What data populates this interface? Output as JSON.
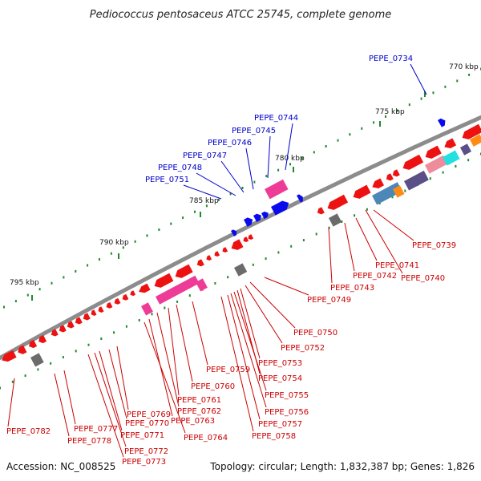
{
  "title": "Pediococcus pentosaceus ATCC 25745, complete genome",
  "footer": {
    "accession": "Accession: NC_008525",
    "summary": "Topology: circular; Length: 1,832,387 bp; Genes: 1,826"
  },
  "colors": {
    "backbone": "#8c8c8c",
    "tick": "#1e8a2e",
    "forward_label": "#0000cc",
    "reverse_label": "#cc0000",
    "cds_reverse": "#ee1111",
    "cds_forward": "#0a0aee",
    "rna": "#6b6b6b",
    "pink": "#ee3c96",
    "light_pink": "#ee8c9c",
    "steel_blue": "#4d87b8",
    "slate": "#5a4f86",
    "cyan": "#22e0e0",
    "orange": "#ff8a14"
  },
  "scale": {
    "tick_labels": [
      "770 kbp",
      "775 kbp",
      "780 kbp",
      "785 kbp",
      "790 kbp",
      "795 kbp"
    ]
  },
  "forward_genes": [
    {
      "label": "PEPE_0734"
    },
    {
      "label": "PEPE_0744"
    },
    {
      "label": "PEPE_0745"
    },
    {
      "label": "PEPE_0746"
    },
    {
      "label": "PEPE_0747"
    },
    {
      "label": "PEPE_0748"
    },
    {
      "label": "PEPE_0751"
    }
  ],
  "reverse_genes": [
    {
      "label": "PEPE_0739"
    },
    {
      "label": "PEPE_0741"
    },
    {
      "label": "PEPE_0742"
    },
    {
      "label": "PEPE_0740"
    },
    {
      "label": "PEPE_0743"
    },
    {
      "label": "PEPE_0749"
    },
    {
      "label": "PEPE_0750"
    },
    {
      "label": "PEPE_0752"
    },
    {
      "label": "PEPE_0753"
    },
    {
      "label": "PEPE_0754"
    },
    {
      "label": "PEPE_0755"
    },
    {
      "label": "PEPE_0756"
    },
    {
      "label": "PEPE_0757"
    },
    {
      "label": "PEPE_0758"
    },
    {
      "label": "PEPE_0759"
    },
    {
      "label": "PEPE_0760"
    },
    {
      "label": "PEPE_0761"
    },
    {
      "label": "PEPE_0762"
    },
    {
      "label": "PEPE_0763"
    },
    {
      "label": "PEPE_0764"
    },
    {
      "label": "PEPE_0769"
    },
    {
      "label": "PEPE_0770"
    },
    {
      "label": "PEPE_0771"
    },
    {
      "label": "PEPE_0772"
    },
    {
      "label": "PEPE_0773"
    },
    {
      "label": "PEPE_0777"
    },
    {
      "label": "PEPE_0778"
    },
    {
      "label": "PEPE_0782"
    }
  ]
}
